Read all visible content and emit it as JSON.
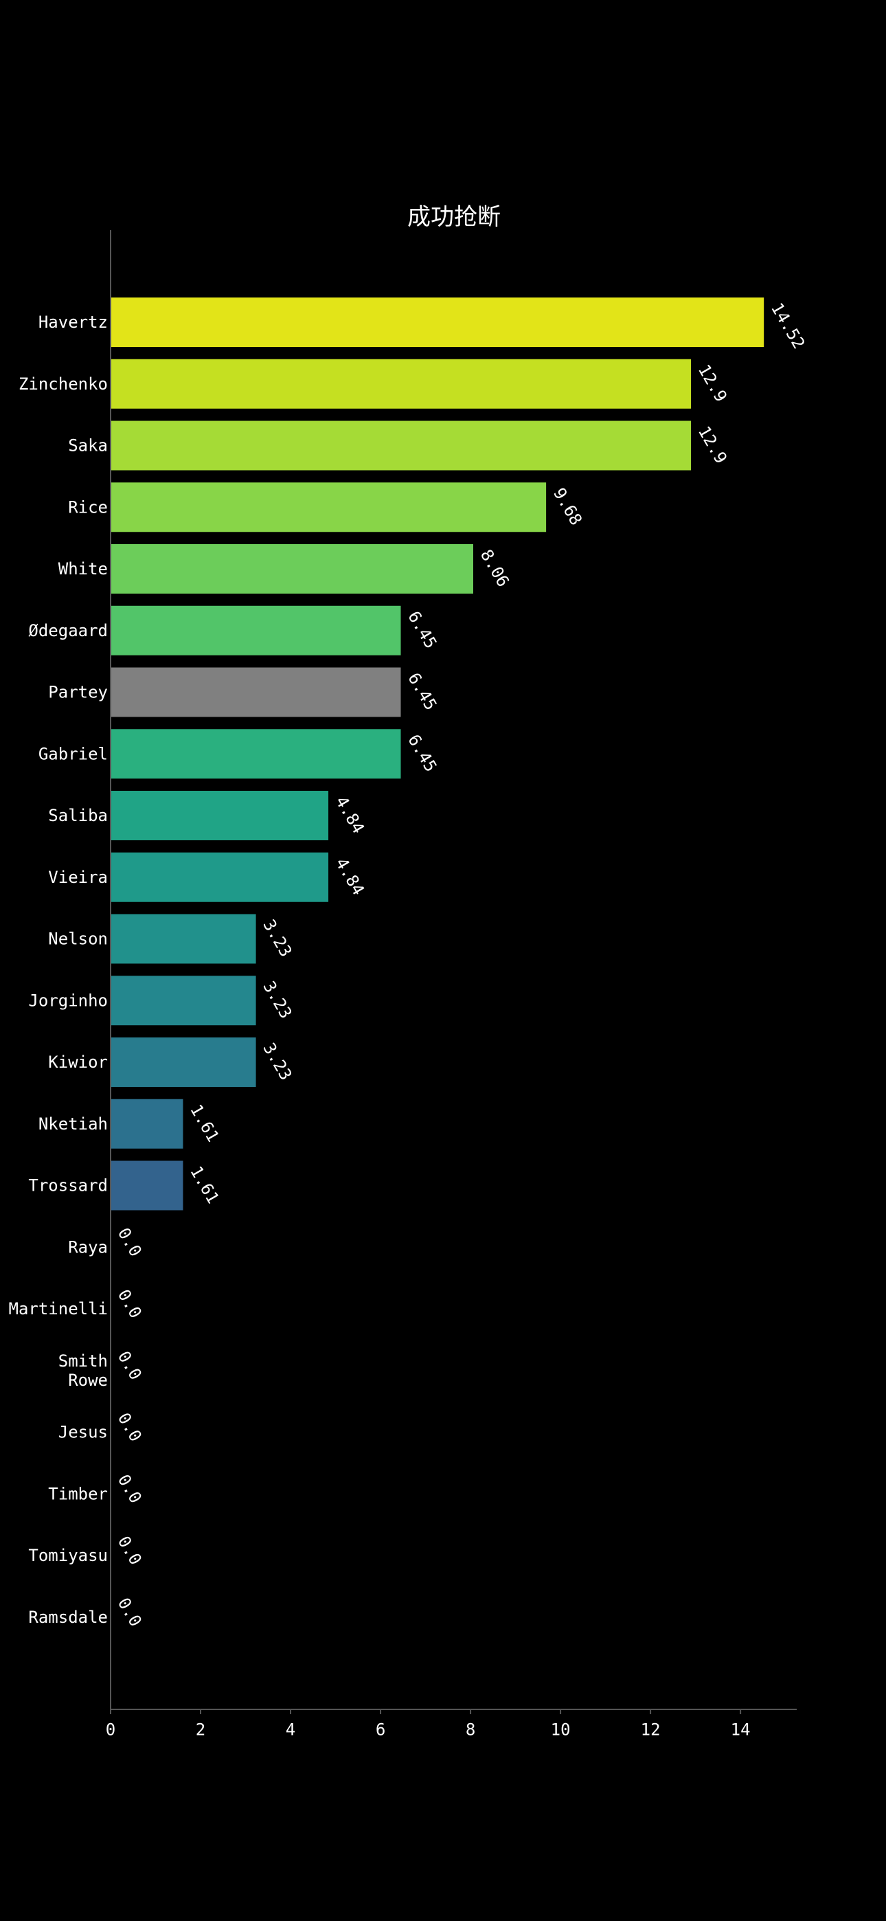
{
  "chart_data": {
    "type": "bar",
    "orientation": "horizontal",
    "title": "成功抢断",
    "xlabel": "",
    "ylabel": "",
    "xlim": [
      0,
      15.25
    ],
    "xticks": [
      0,
      2,
      4,
      6,
      8,
      10,
      12,
      14
    ],
    "grid": false,
    "categories": [
      "Havertz",
      "Zinchenko",
      "Saka",
      "Rice",
      "White",
      "Ødegaard",
      "Partey",
      "Gabriel",
      "Saliba",
      "Vieira",
      "Nelson",
      "Jorginho",
      "Kiwior",
      "Nketiah",
      "Trossard",
      "Raya",
      "Martinelli",
      "Smith\nRowe",
      "Jesus",
      "Timber",
      "Tomiyasu",
      "Ramsdale"
    ],
    "values": [
      14.52,
      12.9,
      12.9,
      9.68,
      8.06,
      6.45,
      6.45,
      6.45,
      4.84,
      4.84,
      3.23,
      3.23,
      3.23,
      1.61,
      1.61,
      0.0,
      0.0,
      0.0,
      0.0,
      0.0,
      0.0,
      0.0
    ],
    "value_labels": [
      "14.52",
      "12.9",
      "12.9",
      "9.68",
      "8.06",
      "6.45",
      "6.45",
      "6.45",
      "4.84",
      "4.84",
      "3.23",
      "3.23",
      "3.23",
      "1.61",
      "1.61",
      "0.0",
      "0.0",
      "0.0",
      "0.0",
      "0.0",
      "0.0",
      "0.0"
    ],
    "colors": [
      "#e2e418",
      "#c5e021",
      "#a5db36",
      "#88d548",
      "#6ccd5a",
      "#52c569",
      "#808080",
      "#2ab07f",
      "#20a486",
      "#1f9a8a",
      "#21918c",
      "#24878e",
      "#287c8e",
      "#2c718e",
      "#33638d",
      "#3a548c",
      "#3f4889",
      "#443983",
      "#472d7b",
      "#482071",
      "#481467",
      "#46075a"
    ]
  }
}
